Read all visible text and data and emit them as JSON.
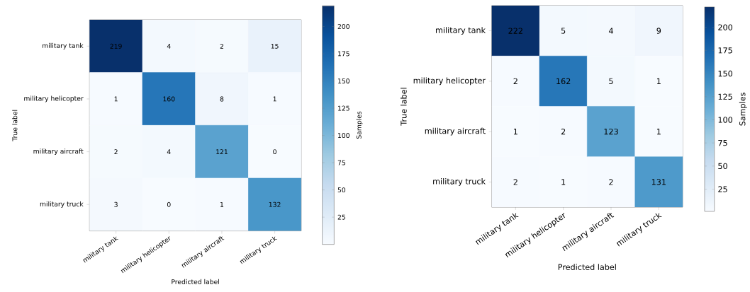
{
  "chart_data": [
    {
      "type": "heatmap",
      "xlabel": "Predicted label",
      "ylabel": "True label",
      "clabel": "Samples",
      "categories": [
        "military tank",
        "military helicopter",
        "military aircraft",
        "military truck"
      ],
      "y_categories": [
        "military tank",
        "military helicopter",
        "military aircraft",
        "military truck"
      ],
      "cells": [
        [
          219,
          4,
          2,
          15
        ],
        [
          1,
          160,
          8,
          1
        ],
        [
          2,
          4,
          121,
          0
        ],
        [
          3,
          0,
          1,
          132
        ]
      ],
      "clim": [
        0,
        219
      ],
      "cticks": [
        25,
        50,
        75,
        100,
        125,
        150,
        175,
        200
      ],
      "data_labels": true
    },
    {
      "type": "heatmap",
      "xlabel": "Predicted label",
      "ylabel": "True label",
      "clabel": "Samples",
      "categories": [
        "military tank",
        "military helicopter",
        "military aircraft",
        "military truck"
      ],
      "y_categories": [
        "military tank",
        "military helicopter",
        "military aircraft",
        "military truck"
      ],
      "cells": [
        [
          222,
          5,
          4,
          9
        ],
        [
          2,
          162,
          5,
          1
        ],
        [
          1,
          2,
          123,
          1
        ],
        [
          2,
          1,
          2,
          131
        ]
      ],
      "clim": [
        1,
        222
      ],
      "cticks": [
        25,
        50,
        75,
        100,
        125,
        150,
        175,
        200
      ],
      "data_labels": true
    }
  ]
}
